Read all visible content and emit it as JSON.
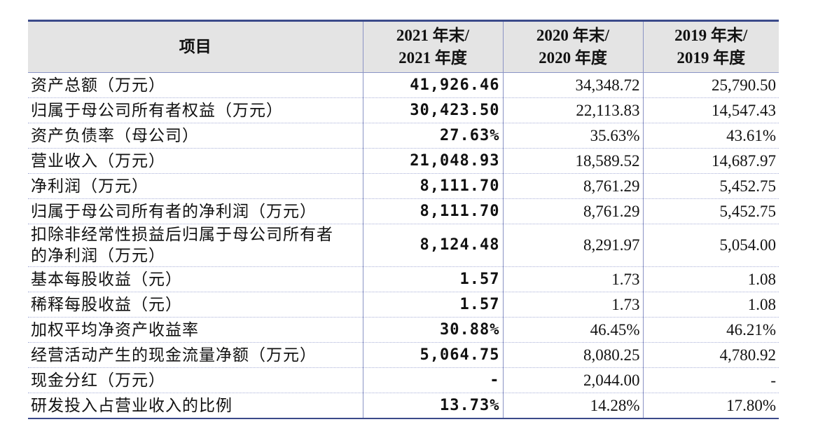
{
  "table": {
    "header": [
      [
        "项目"
      ],
      [
        "2021 年末/",
        "2021 年度"
      ],
      [
        "2020 年末/",
        "2020 年度"
      ],
      [
        "2019 年末/",
        "2019 年度"
      ]
    ],
    "rows": [
      [
        "资产总额（万元）",
        "41,926.46",
        "34,348.72",
        "25,790.50"
      ],
      [
        "归属于母公司所有者权益（万元）",
        "30,423.50",
        "22,113.83",
        "14,547.43"
      ],
      [
        "资产负债率（母公司）",
        "27.63%",
        "35.63%",
        "43.61%"
      ],
      [
        "营业收入（万元）",
        "21,048.93",
        "18,589.52",
        "14,687.97"
      ],
      [
        "净利润（万元）",
        "8,111.70",
        "8,761.29",
        "5,452.75"
      ],
      [
        "归属于母公司所有者的净利润（万元）",
        "8,111.70",
        "8,761.29",
        "5,452.75"
      ],
      [
        "扣除非经常性损益后归属于母公司所有者的净利润（万元）",
        "8,124.48",
        "8,291.97",
        "5,054.00"
      ],
      [
        "基本每股收益（元）",
        "1.57",
        "1.73",
        "1.08"
      ],
      [
        "稀释每股收益（元）",
        "1.57",
        "1.73",
        "1.08"
      ],
      [
        "加权平均净资产收益率",
        "30.88%",
        "46.45%",
        "46.21%"
      ],
      [
        "经营活动产生的现金流量净额（万元）",
        "5,064.75",
        "8,080.25",
        "4,780.92"
      ],
      [
        "现金分红（万元）",
        "-",
        "2,044.00",
        "-"
      ],
      [
        "研发投入占营业收入的比例",
        "13.73%",
        "14.28%",
        "17.80%"
      ]
    ]
  }
}
